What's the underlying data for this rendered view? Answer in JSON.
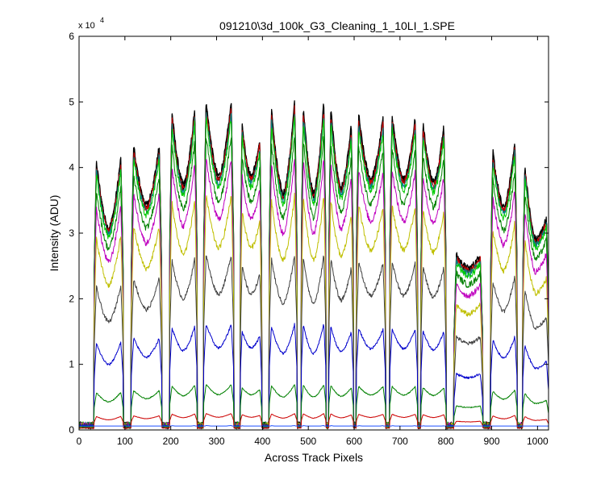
{
  "chart_data": {
    "type": "line",
    "title": "091210\\3d_100k_G3_Cleaning_1_10LI_1.SPE",
    "xlabel": "Across Track Pixels",
    "ylabel": "Intensity (ADU)",
    "y_exponent_label": "x 10",
    "y_exponent": "4",
    "xlim": [
      0,
      1024
    ],
    "ylim": [
      0,
      60000
    ],
    "x_ticks": [
      0,
      100,
      200,
      300,
      400,
      500,
      600,
      700,
      800,
      900,
      1000
    ],
    "y_ticks": [
      0,
      10000,
      20000,
      30000,
      40000,
      50000,
      60000
    ],
    "y_tick_labels": [
      "0",
      "1",
      "2",
      "3",
      "4",
      "5",
      "6"
    ],
    "grid": false,
    "channels": [
      {
        "start": 33,
        "end": 96,
        "peak_left": 1.0,
        "min": 0.7,
        "peak_right": 1.02
      },
      {
        "start": 114,
        "end": 180,
        "peak_left": 1.05,
        "min": 0.78,
        "peak_right": 1.05
      },
      {
        "start": 198,
        "end": 257,
        "peak_left": 1.18,
        "min": 0.85,
        "peak_right": 1.2
      },
      {
        "start": 272,
        "end": 337,
        "peak_left": 1.22,
        "min": 0.88,
        "peak_right": 1.22
      },
      {
        "start": 352,
        "end": 398,
        "peak_left": 1.12,
        "min": 0.88,
        "peak_right": 1.05
      },
      {
        "start": 415,
        "end": 475,
        "peak_left": 1.2,
        "min": 0.82,
        "peak_right": 1.24
      },
      {
        "start": 485,
        "end": 538,
        "peak_left": 1.22,
        "min": 0.82,
        "peak_right": 1.24
      },
      {
        "start": 545,
        "end": 598,
        "peak_left": 1.2,
        "min": 0.84,
        "peak_right": 1.12
      },
      {
        "start": 605,
        "end": 668,
        "peak_left": 1.16,
        "min": 0.87,
        "peak_right": 1.15
      },
      {
        "start": 678,
        "end": 738,
        "peak_left": 1.16,
        "min": 0.87,
        "peak_right": 1.15
      },
      {
        "start": 746,
        "end": 800,
        "peak_left": 1.13,
        "min": 0.86,
        "peak_right": 1.12
      },
      {
        "start": 818,
        "end": 880,
        "peak_left": 0.62,
        "min": 0.56,
        "peak_right": 0.62
      },
      {
        "start": 898,
        "end": 955,
        "peak_left": 1.03,
        "min": 0.77,
        "peak_right": 1.08
      },
      {
        "start": 968,
        "end": 1024,
        "peak_left": 1.0,
        "min": 0.66,
        "peak_right": 0.76
      }
    ],
    "series": [
      {
        "color": "#000000",
        "scale": 44000,
        "gap_floor": 700
      },
      {
        "color": "#000000",
        "scale": 43600,
        "gap_floor": 700
      },
      {
        "color": "#cc0000",
        "scale": 43200,
        "gap_floor": 700
      },
      {
        "color": "#008080",
        "scale": 42600,
        "gap_floor": 700
      },
      {
        "color": "#00cc00",
        "scale": 42000,
        "gap_floor": 700
      },
      {
        "color": "#008000",
        "scale": 39500,
        "gap_floor": 700
      },
      {
        "color": "#bf00bf",
        "scale": 36500,
        "gap_floor": 700
      },
      {
        "color": "#bfbf00",
        "scale": 31500,
        "gap_floor": 700
      },
      {
        "color": "#404040",
        "scale": 23500,
        "gap_floor": 700
      },
      {
        "color": "#0000cc",
        "scale": 14200,
        "gap_floor": 600
      },
      {
        "color": "#008000",
        "scale": 6100,
        "gap_floor": 500
      },
      {
        "color": "#cc0000",
        "scale": 2200,
        "gap_floor": 300
      },
      {
        "color": "#1e50ff",
        "scale": 600,
        "gap_floor": 600
      }
    ]
  }
}
